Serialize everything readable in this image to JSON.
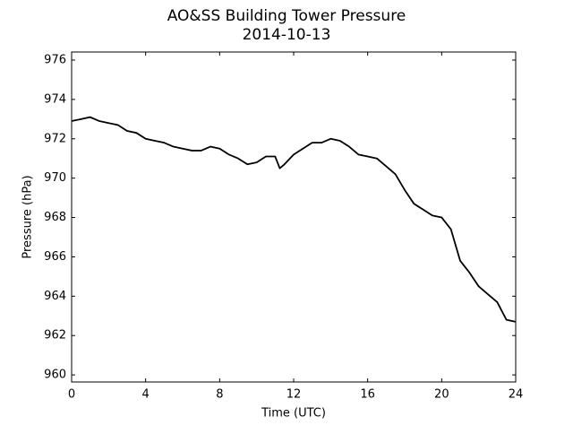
{
  "chart_data": {
    "type": "line",
    "title": "AO&SS Building Tower Pressure",
    "subtitle": "2014-10-13",
    "x_label": "Time (UTC)",
    "y_label": "Pressure (hPa)",
    "x": [
      0,
      0.5,
      1,
      1.5,
      2,
      2.5,
      3,
      3.5,
      4,
      4.5,
      5,
      5.5,
      6,
      6.5,
      7,
      7.5,
      8,
      8.5,
      9,
      9.5,
      10,
      10.5,
      11,
      11.25,
      11.5,
      12,
      12.5,
      13,
      13.5,
      14,
      14.5,
      15,
      15.5,
      16,
      16.5,
      17,
      17.5,
      18,
      18.5,
      19,
      19.5,
      20,
      20.5,
      21,
      21.5,
      22,
      22.5,
      23,
      23.5,
      24
    ],
    "series": [
      {
        "name": "Pressure",
        "color": "#000000",
        "values": [
          972.9,
          973.0,
          973.1,
          972.9,
          972.8,
          972.7,
          972.4,
          972.3,
          972.0,
          971.9,
          971.8,
          971.6,
          971.5,
          971.4,
          971.4,
          971.6,
          971.5,
          971.2,
          971.0,
          970.7,
          970.8,
          971.1,
          971.1,
          970.5,
          970.7,
          971.2,
          971.5,
          971.8,
          971.8,
          972.0,
          971.9,
          971.6,
          971.2,
          971.1,
          971.0,
          970.6,
          970.2,
          969.4,
          968.7,
          968.4,
          968.1,
          968.0,
          967.4,
          965.8,
          965.2,
          964.5,
          964.1,
          963.7,
          962.8,
          962.7
        ]
      }
    ],
    "xlim": [
      0,
      24
    ],
    "xticks": [
      0,
      4,
      8,
      12,
      16,
      20,
      24
    ],
    "ylim": [
      959.64,
      976.41
    ],
    "yticks": [
      960,
      962,
      964,
      966,
      968,
      970,
      972,
      974,
      976
    ],
    "grid": false
  }
}
